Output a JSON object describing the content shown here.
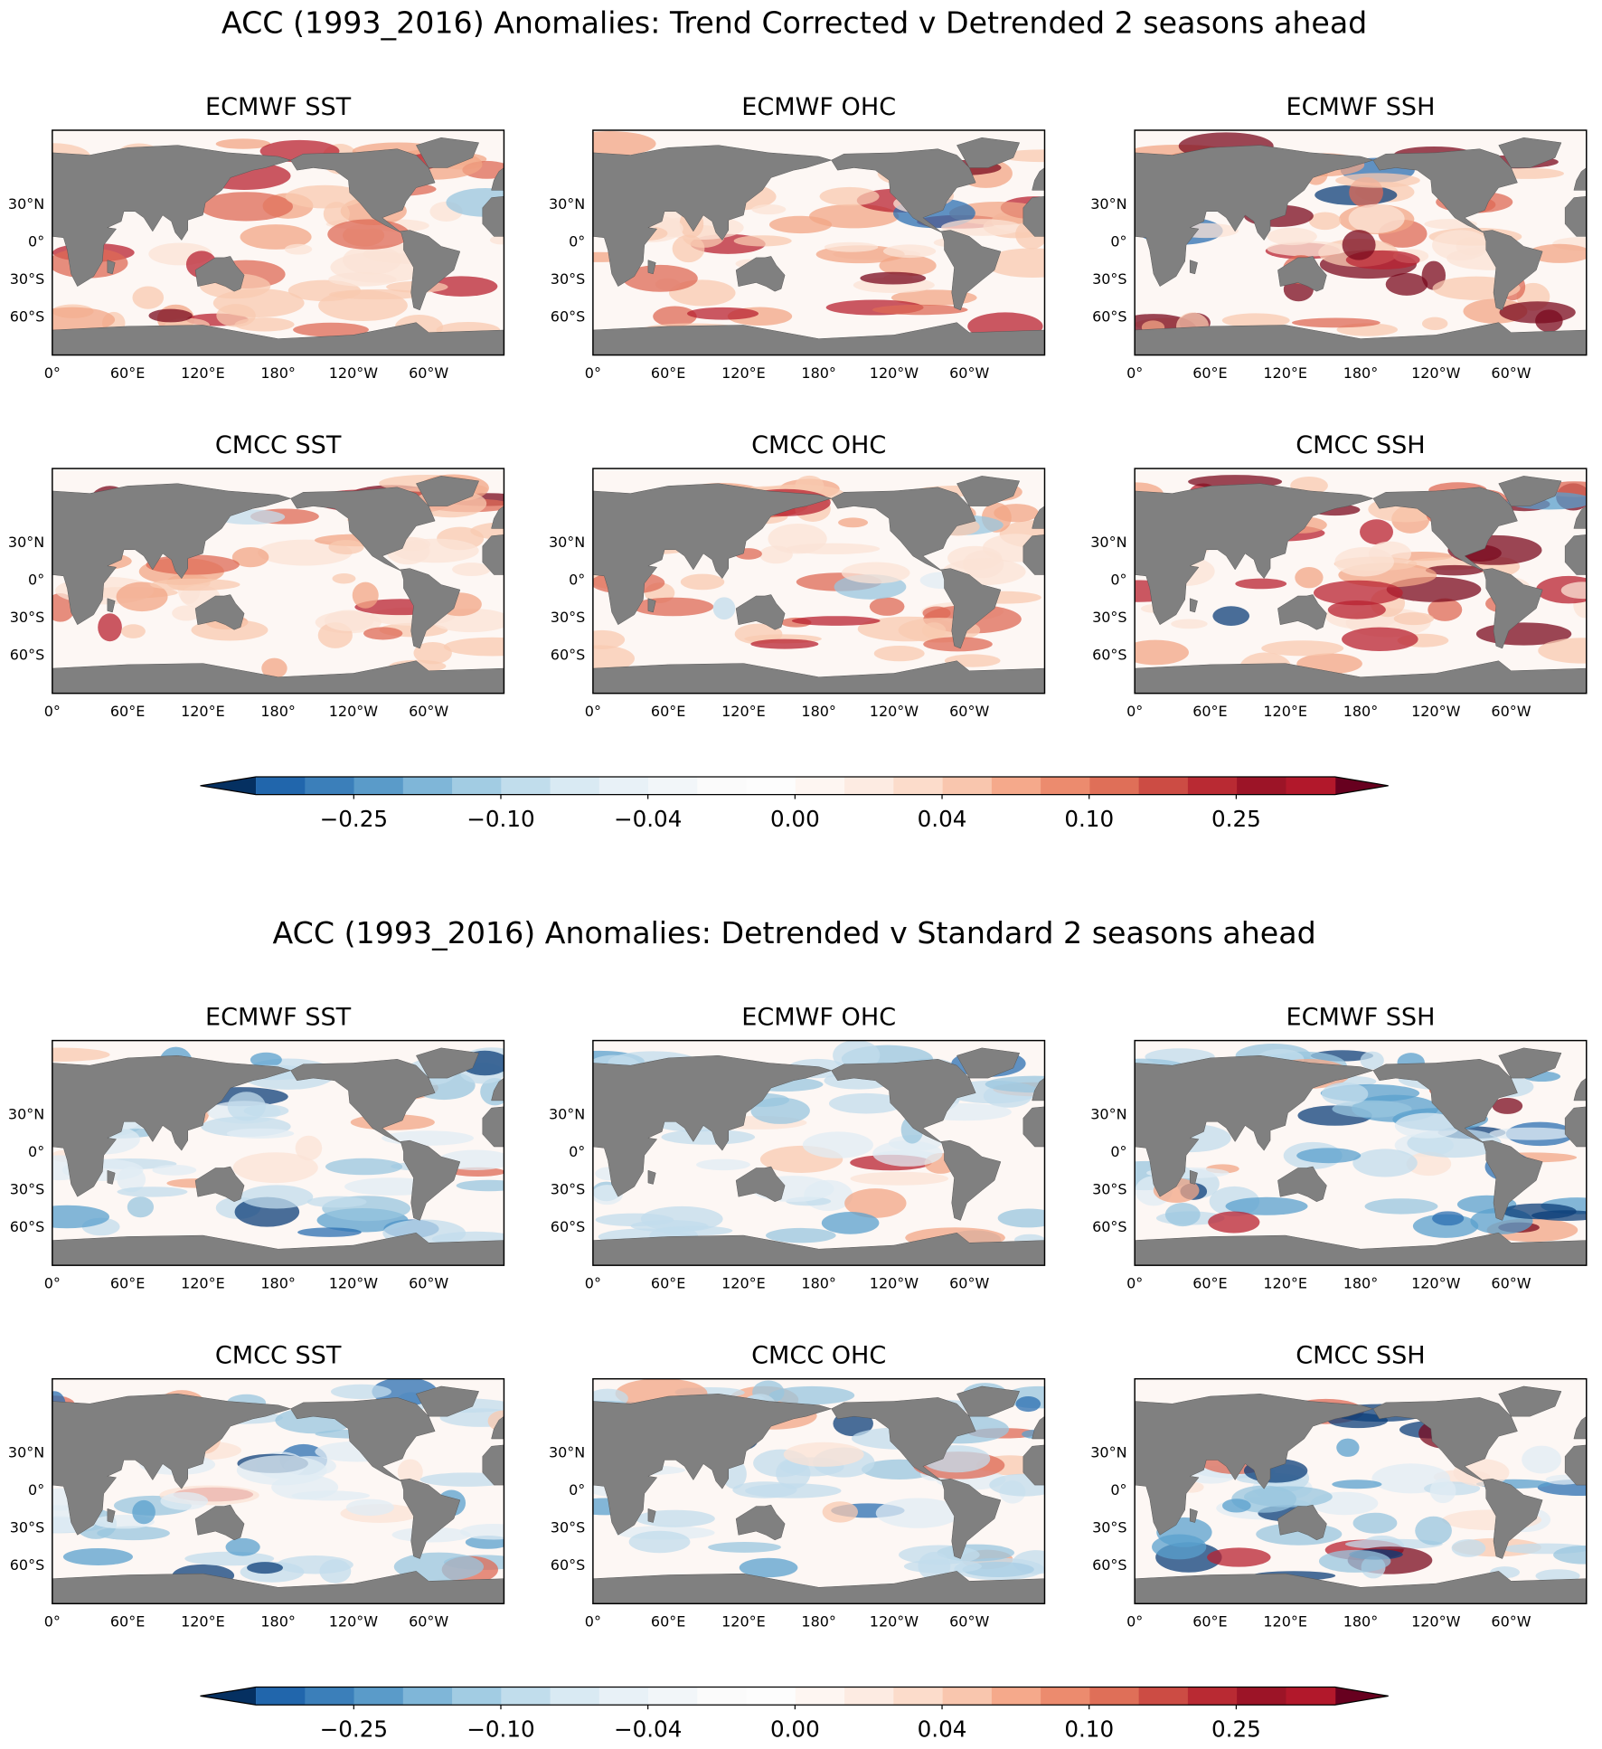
{
  "figures": [
    {
      "title": "ACC (1993_2016) Anomalies: Trend Corrected v Detrended 2 seasons ahead",
      "panels": [
        "ECMWF SST",
        "ECMWF OHC",
        "ECMWF SSH",
        "CMCC SST",
        "CMCC OHC",
        "CMCC SSH"
      ],
      "colorbar_ticks": [
        {
          "value": -0.25,
          "label": "−0.25"
        },
        {
          "value": -0.1,
          "label": "−0.10"
        },
        {
          "value": -0.04,
          "label": "−0.04"
        },
        {
          "value": 0,
          "label": "0.00"
        },
        {
          "value": 0.04,
          "label": "0.04"
        },
        {
          "value": 0.1,
          "label": "0.10"
        },
        {
          "value": 0.25,
          "label": "0.25"
        }
      ]
    },
    {
      "title": "ACC (1993_2016) Anomalies: Detrended v Standard 2 seasons ahead",
      "panels": [
        "ECMWF SST",
        "ECMWF OHC",
        "ECMWF SSH",
        "CMCC SST",
        "CMCC OHC",
        "CMCC SSH"
      ],
      "colorbar_ticks": [
        {
          "value": -0.25,
          "label": "−0.25"
        },
        {
          "value": -0.1,
          "label": "−0.10"
        },
        {
          "value": -0.04,
          "label": "−0.04"
        },
        {
          "value": 0,
          "label": "0.00"
        },
        {
          "value": 0.04,
          "label": "0.04"
        },
        {
          "value": 0.1,
          "label": "0.10"
        },
        {
          "value": 0.25,
          "label": "0.25"
        }
      ]
    }
  ],
  "lat_ticks": [
    "30°N",
    "0°",
    "30°S",
    "60°S"
  ],
  "lon_ticks": [
    "0°",
    "60°E",
    "120°E",
    "180°",
    "120°W",
    "60°W"
  ]
}
